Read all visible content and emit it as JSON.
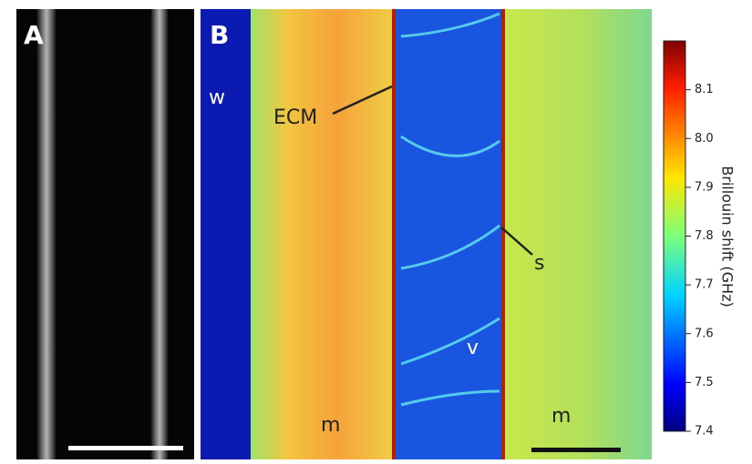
{
  "panels": [
    {
      "label": "A"
    },
    {
      "label": "B"
    }
  ],
  "annotations": {
    "w": "w",
    "ecm": "ECM",
    "s": "s",
    "v": "v",
    "m_left": "m",
    "m_right": "m"
  },
  "colorbar": {
    "label": "Brillouin shift (GHz)",
    "range": [
      7.4,
      8.2
    ],
    "ticks": [
      7.4,
      7.5,
      7.6,
      7.7,
      7.8,
      7.9,
      {
        "value": 8,
        "label": "8.0"
      },
      8.1
    ]
  }
}
